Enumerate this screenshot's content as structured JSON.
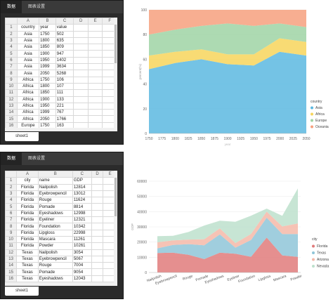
{
  "panel1": {
    "tabs": [
      "数据",
      "图表设置"
    ],
    "sheet_tab": "sheet1",
    "col_headers": [
      "",
      "A",
      "B",
      "C",
      "D",
      "E",
      "F"
    ],
    "rows": [
      [
        "1",
        "country",
        "year",
        "value",
        "",
        "",
        ""
      ],
      [
        "2",
        "Asia",
        "1750",
        "502",
        "",
        "",
        ""
      ],
      [
        "3",
        "Asia",
        "1800",
        "635",
        "",
        "",
        ""
      ],
      [
        "4",
        "Asia",
        "1850",
        "809",
        "",
        "",
        ""
      ],
      [
        "5",
        "Asia",
        "1900",
        "947",
        "",
        "",
        ""
      ],
      [
        "6",
        "Asia",
        "1950",
        "1402",
        "",
        "",
        ""
      ],
      [
        "7",
        "Asia",
        "1999",
        "3634",
        "",
        "",
        ""
      ],
      [
        "8",
        "Asia",
        "2050",
        "5268",
        "",
        "",
        ""
      ],
      [
        "9",
        "Africa",
        "1750",
        "106",
        "",
        "",
        ""
      ],
      [
        "10",
        "Africa",
        "1800",
        "107",
        "",
        "",
        ""
      ],
      [
        "11",
        "Africa",
        "1850",
        "111",
        "",
        "",
        ""
      ],
      [
        "12",
        "Africa",
        "1900",
        "133",
        "",
        "",
        ""
      ],
      [
        "13",
        "Africa",
        "1950",
        "221",
        "",
        "",
        ""
      ],
      [
        "14",
        "Africa",
        "1999",
        "767",
        "",
        "",
        ""
      ],
      [
        "15",
        "Africa",
        "2050",
        "1766",
        "",
        "",
        ""
      ],
      [
        "16",
        "Europe",
        "1750",
        "163",
        "",
        "",
        ""
      ]
    ]
  },
  "panel2": {
    "tabs": [
      "数据",
      "图表设置"
    ],
    "sheet_tab": "sheet1",
    "col_headers": [
      "",
      "A",
      "B",
      "C",
      "D",
      "E"
    ],
    "rows": [
      [
        "1",
        "city",
        "name",
        "GDP",
        "",
        ""
      ],
      [
        "2",
        "Florida",
        "Nailpolish",
        "12814",
        "",
        ""
      ],
      [
        "3",
        "Florida",
        "Eyebrowpencil",
        "13012",
        "",
        ""
      ],
      [
        "4",
        "Florida",
        "Rouge",
        "11624",
        "",
        ""
      ],
      [
        "5",
        "Florida",
        "Pomade",
        "8814",
        "",
        ""
      ],
      [
        "6",
        "Florida",
        "Eyeshadows",
        "12998",
        "",
        ""
      ],
      [
        "7",
        "Florida",
        "Eyeliner",
        "12321",
        "",
        ""
      ],
      [
        "8",
        "Florida",
        "Foundation",
        "10342",
        "",
        ""
      ],
      [
        "9",
        "Florida",
        "Lipgloss",
        "22998",
        "",
        ""
      ],
      [
        "10",
        "Florida",
        "Mascara",
        "11261",
        "",
        ""
      ],
      [
        "11",
        "Florida",
        "Powder",
        "10261",
        "",
        ""
      ],
      [
        "12",
        "Texas",
        "Nailpolish",
        "3054",
        "",
        ""
      ],
      [
        "13",
        "Texas",
        "Eyebrowpencil",
        "5067",
        "",
        ""
      ],
      [
        "14",
        "Texas",
        "Rouge",
        "7004",
        "",
        ""
      ],
      [
        "15",
        "Texas",
        "Pomade",
        "9054",
        "",
        ""
      ],
      [
        "16",
        "Texas",
        "Eyeshadows",
        "12043",
        "",
        ""
      ]
    ]
  },
  "chart_data": [
    {
      "type": "area",
      "stacking": "percent",
      "title": "",
      "xlabel": "year",
      "ylabel": "percent(%)",
      "x": [
        1750,
        1800,
        1850,
        1900,
        1950,
        1999,
        2050
      ],
      "x_ticks": [
        "1750",
        "1775",
        "1800",
        "1825",
        "1850",
        "1875",
        "1900",
        "1925",
        "1950",
        "1975",
        "2000",
        "2025",
        "2050"
      ],
      "y_ticks": [
        "0",
        "20",
        "40",
        "60",
        "80",
        "100"
      ],
      "ylim": [
        0,
        100
      ],
      "legend_title": "country",
      "legend_position": "right",
      "series": [
        {
          "name": "Asia",
          "color": "#5cb8e0",
          "values": [
            52,
            57,
            60,
            56,
            55,
            66,
            63
          ]
        },
        {
          "name": "Africa",
          "color": "#f7d55c",
          "values": [
            11,
            9,
            8,
            8,
            9,
            11,
            11
          ]
        },
        {
          "name": "Europe",
          "color": "#9fd3a4",
          "values": [
            17,
            18,
            19,
            25,
            23,
            12,
            12
          ]
        },
        {
          "name": "Oceania",
          "color": "#f6a07e",
          "values": [
            20,
            16,
            13,
            11,
            13,
            11,
            14
          ]
        }
      ]
    },
    {
      "type": "area",
      "stacking": "stacked",
      "title": "",
      "xlabel": "",
      "ylabel": "GDP",
      "categories": [
        "Nailpolish",
        "Eyebrowpencil",
        "Rouge",
        "Pomade",
        "Eyeshadows",
        "Eyeliner",
        "Foundation",
        "Lipgloss",
        "Mascara",
        "Powder"
      ],
      "y_ticks": [
        "0",
        "10000",
        "20000",
        "30000",
        "40000",
        "50000",
        "60000"
      ],
      "ylim": [
        0,
        60000
      ],
      "legend_title": "city",
      "legend_position": "right",
      "series": [
        {
          "name": "Florida",
          "color": "#e07b7b",
          "values": [
            12814,
            13012,
            11624,
            8814,
            12998,
            12321,
            10342,
            22998,
            11261,
            10261
          ]
        },
        {
          "name": "Texas",
          "color": "#8fc5d8",
          "values": [
            3054,
            5067,
            7004,
            9054,
            12043,
            4000,
            11000,
            13000,
            14000,
            15000
          ]
        },
        {
          "name": "Arizona",
          "color": "#f4b8a8",
          "values": [
            4000,
            3000,
            3000,
            4000,
            4000,
            3000,
            4000,
            4000,
            5000,
            7000
          ]
        },
        {
          "name": "Nevada",
          "color": "#bde0cc",
          "values": [
            4000,
            3000,
            5000,
            9000,
            5000,
            14000,
            12000,
            2000,
            7000,
            23000
          ]
        }
      ]
    }
  ]
}
